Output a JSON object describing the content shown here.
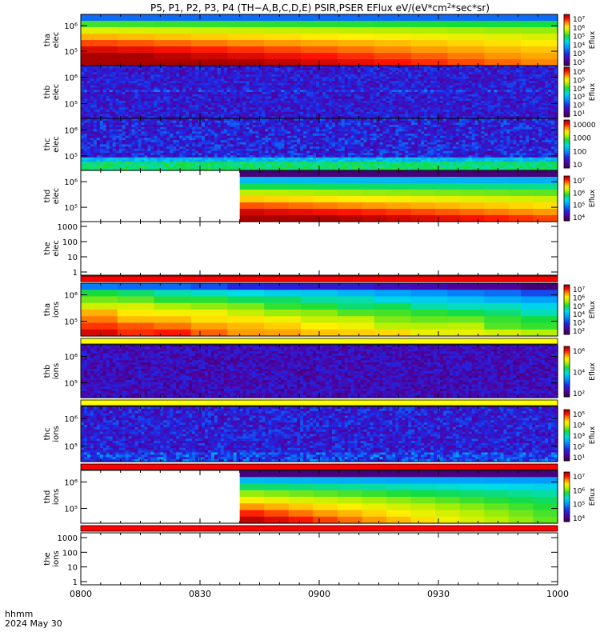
{
  "title": {
    "prefix": "P5, P1, P2, P3, P4 (TH−A,B,C,D,E) PSIR,PSER EFlux eV/(eV*cm",
    "sup": "2",
    "suffix": "*sec*sr)"
  },
  "footer": {
    "hhmm": "hhmm",
    "date": "2024 May 30"
  },
  "chart_data": {
    "type": "heatmap",
    "title": "P5, P1, P2, P3, P4 (TH−A,B,C,D,E) PSIR,PSER EFlux eV/(eV*cm2*sec*sr)",
    "xlabel": "hhmm",
    "x_ticks": [
      "0800",
      "0830",
      "0900",
      "0930",
      "1000"
    ],
    "x_range": [
      "08:00",
      "10:00"
    ],
    "date": "2024 May 30",
    "panels": [
      {
        "id": "tha_elec",
        "label": [
          "tha",
          "elec"
        ],
        "kind": "spectrogram",
        "y_scale": "log",
        "y_ticks": [
          "10⁶",
          "10⁵"
        ],
        "colorbar": {
          "label": "Eflux",
          "ticks": [
            "10⁷",
            "10⁶",
            "10⁵",
            "10⁴",
            "10³",
            "10²"
          ]
        },
        "pattern": "smooth_decay",
        "data_start": "08:00"
      },
      {
        "id": "thb_elec",
        "label": [
          "thb",
          "elec"
        ],
        "kind": "spectrogram",
        "y_scale": "log",
        "y_ticks": [
          "10⁶",
          "10⁵"
        ],
        "colorbar": {
          "label": "Eflux",
          "ticks": [
            "10⁶",
            "10⁵",
            "10⁴",
            "10³",
            "10²",
            "10¹"
          ]
        },
        "pattern": "noisy_low",
        "data_start": "08:00"
      },
      {
        "id": "thc_elec",
        "label": [
          "thc",
          "elec"
        ],
        "kind": "spectrogram",
        "y_scale": "log",
        "y_ticks": [
          "10⁶",
          "10⁵"
        ],
        "colorbar": {
          "label": "",
          "ticks": [
            "10000",
            "1000",
            "100",
            "10"
          ]
        },
        "pattern": "noisy_band",
        "data_start": "08:00"
      },
      {
        "id": "thd_elec",
        "label": [
          "thd",
          "elec"
        ],
        "kind": "spectrogram",
        "y_scale": "log",
        "y_ticks": [
          "10⁶",
          "10⁵"
        ],
        "colorbar": {
          "label": "Eflux",
          "ticks": [
            "10⁷",
            "10⁶",
            "10⁵",
            "10⁴"
          ]
        },
        "pattern": "smooth_decay_late",
        "data_start": "08:40"
      },
      {
        "id": "the_elec",
        "label": [
          "the",
          "elec"
        ],
        "kind": "empty",
        "y_scale": "log",
        "y_ticks": [
          "1000",
          "100",
          "10",
          "1"
        ]
      },
      {
        "id": "tha_ions",
        "label": [
          "tha",
          "ions"
        ],
        "kind": "spectrogram",
        "y_scale": "log",
        "y_ticks": [
          "10⁶",
          "10⁵"
        ],
        "colorbar": {
          "label": "Eflux",
          "ticks": [
            "10⁷",
            "10⁶",
            "10⁵",
            "10⁴",
            "10³",
            "10²"
          ]
        },
        "pattern": "ions_decay",
        "data_start": "08:00"
      },
      {
        "id": "thb_ions",
        "label": [
          "thb",
          "ions"
        ],
        "kind": "spectrogram",
        "y_scale": "log",
        "y_ticks": [
          "10⁶",
          "10⁵"
        ],
        "colorbar": {
          "label": "Eflux",
          "ticks": [
            "10⁶",
            "10⁴",
            "10²"
          ]
        },
        "pattern": "noisy_low_ions",
        "data_start": "08:00"
      },
      {
        "id": "thc_ions",
        "label": [
          "thc",
          "ions"
        ],
        "kind": "spectrogram",
        "y_scale": "log",
        "y_ticks": [
          "10⁶",
          "10⁵"
        ],
        "colorbar": {
          "label": "Eflux",
          "ticks": [
            "10⁵",
            "10⁴",
            "10³",
            "10²",
            "10¹"
          ]
        },
        "pattern": "noisy_mid",
        "data_start": "08:00"
      },
      {
        "id": "thd_ions",
        "label": [
          "thd",
          "ions"
        ],
        "kind": "spectrogram",
        "y_scale": "log",
        "y_ticks": [
          "10⁶",
          "10⁵"
        ],
        "colorbar": {
          "label": "Eflux",
          "ticks": [
            "10⁷",
            "10⁶",
            "10⁵",
            "10⁴"
          ]
        },
        "pattern": "ions_decay_late",
        "data_start": "08:40"
      },
      {
        "id": "the_ions",
        "label": [
          "the",
          "ions"
        ],
        "kind": "empty",
        "y_scale": "log",
        "y_ticks": [
          "1000",
          "100",
          "10",
          "1"
        ]
      }
    ]
  }
}
